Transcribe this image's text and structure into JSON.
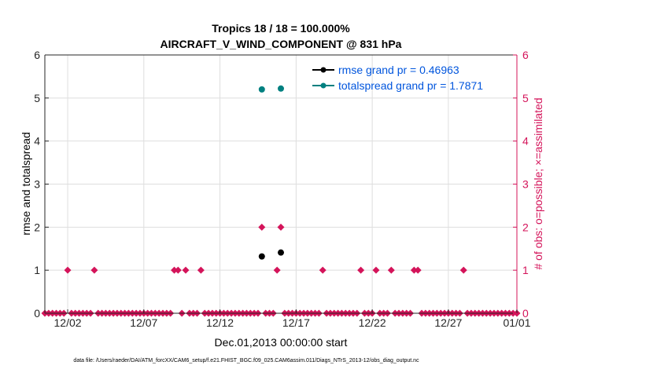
{
  "chart_data": {
    "type": "scatter",
    "title_line1": "Tropics 18 / 18 = 100.000%",
    "title_line2": "AIRCRAFT_V_WIND_COMPONENT @ 831 hPa",
    "xlabel": "Dec.01,2013 00:00:00 start",
    "ylabel_left": "rmse and totalspread",
    "ylabel_right": "# of obs: o=possible; ×=assimilated",
    "xlim": [
      0.5,
      31.5
    ],
    "ylim_left": [
      0,
      6
    ],
    "ylim_right": [
      0,
      6
    ],
    "x_ticks": [
      {
        "value": 2,
        "label": "12/02"
      },
      {
        "value": 7,
        "label": "12/07"
      },
      {
        "value": 12,
        "label": "12/12"
      },
      {
        "value": 17,
        "label": "12/17"
      },
      {
        "value": 22,
        "label": "12/22"
      },
      {
        "value": 27,
        "label": "12/27"
      },
      {
        "value": 32,
        "label": "01/01"
      }
    ],
    "y_ticks_left": [
      0,
      1,
      2,
      3,
      4,
      5,
      6
    ],
    "y_ticks_right": [
      0,
      1,
      2,
      3,
      4,
      5,
      6
    ],
    "legend": [
      {
        "label": "rmse grand pr = 0.46963",
        "color": "#000000"
      },
      {
        "label": "totalspread grand pr = 1.7871",
        "color": "#008080"
      }
    ],
    "series": [
      {
        "name": "rmse",
        "color": "#000000",
        "points": [
          [
            14.75,
            1.32
          ],
          [
            16.0,
            1.41
          ]
        ]
      },
      {
        "name": "totalspread",
        "color": "#008080",
        "points": [
          [
            14.75,
            5.2
          ],
          [
            16.0,
            5.22
          ]
        ]
      }
    ],
    "obs_color": "#d4145a",
    "obs_counts": {
      "step_days": 0.25,
      "start": 0.5,
      "nonzero": [
        {
          "x": 2.0,
          "count": 1
        },
        {
          "x": 3.75,
          "count": 1
        },
        {
          "x": 9.0,
          "count": 1
        },
        {
          "x": 9.25,
          "count": 1
        },
        {
          "x": 9.75,
          "count": 1
        },
        {
          "x": 10.75,
          "count": 1
        },
        {
          "x": 14.75,
          "count": 2
        },
        {
          "x": 15.75,
          "count": 1
        },
        {
          "x": 16.0,
          "count": 2
        },
        {
          "x": 18.75,
          "count": 1
        },
        {
          "x": 21.25,
          "count": 1
        },
        {
          "x": 22.25,
          "count": 1
        },
        {
          "x": 23.25,
          "count": 1
        },
        {
          "x": 24.75,
          "count": 1
        },
        {
          "x": 25.0,
          "count": 1
        },
        {
          "x": 28.0,
          "count": 1
        }
      ]
    },
    "footer": "data file: /Users/raeder/DAI/ATM_forcXX/CAM6_setup/f.e21.FHIST_BGC.f09_025.CAM6assim.011/Diags_NTrS_2013-12/obs_diag_output.nc"
  }
}
